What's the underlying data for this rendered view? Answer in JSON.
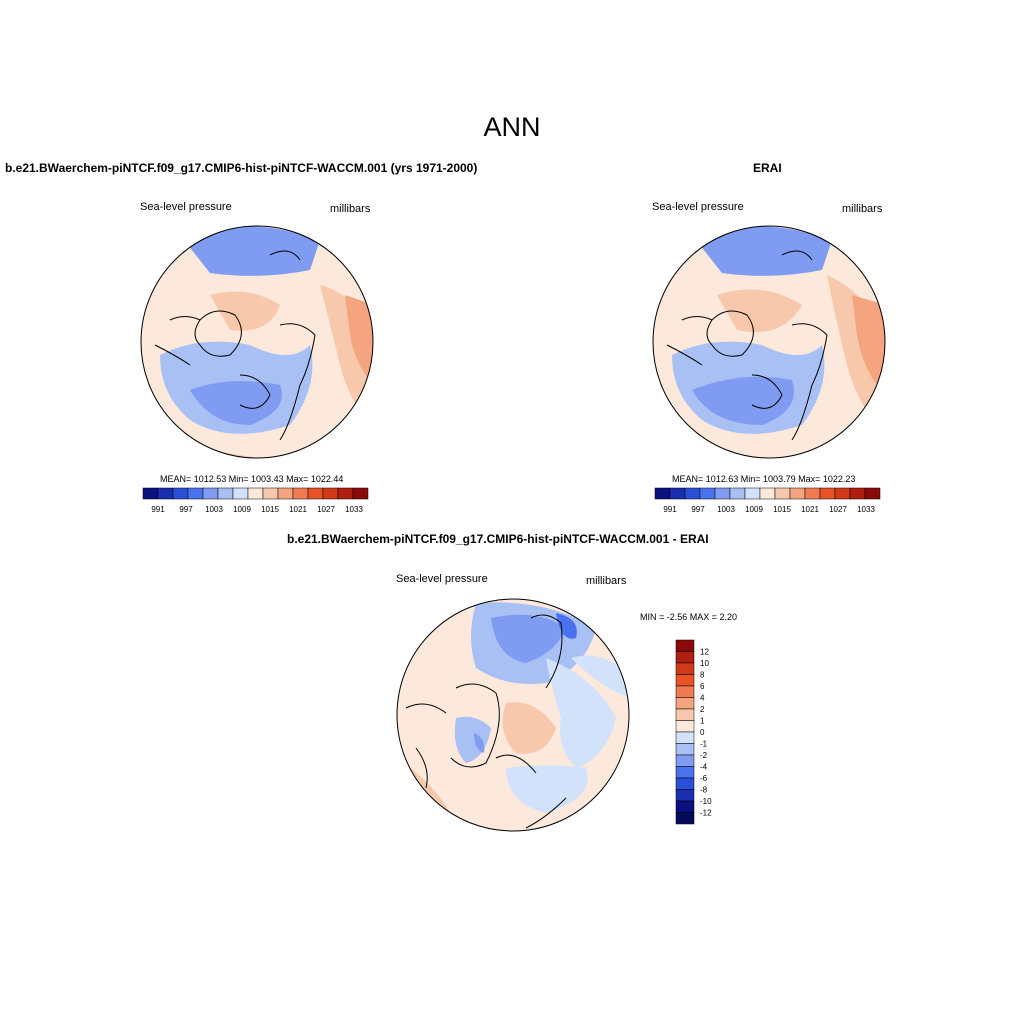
{
  "page": {
    "season": "ANN"
  },
  "panels": [
    {
      "title": "b.e21.BWaerchem-piNTCF.f09_g17.CMIP6-hist-piNTCF-WACCM.001 (yrs 1971-2000)",
      "left_label": "Sea-level pressure",
      "right_label": "millibars",
      "stats": "MEAN= 1012.53  Min= 1003.43  Max= 1022.44"
    },
    {
      "title": "ERAI",
      "left_label": "Sea-level pressure",
      "right_label": "millibars",
      "stats": "MEAN= 1012.63  Min= 1003.79  Max= 1022.23"
    },
    {
      "title": "b.e21.BWaerchem-piNTCF.f09_g17.CMIP6-hist-piNTCF-WACCM.001 - ERAI",
      "left_label": "Sea-level pressure",
      "right_label": "millibars",
      "stats": "MIN =  -2.56 MAX =   2.20"
    }
  ],
  "abs_colorbar": {
    "labels": [
      "991",
      "997",
      "1003",
      "1009",
      "1015",
      "1021",
      "1027",
      "1033"
    ],
    "colors": [
      "#0a1080",
      "#1a2fb0",
      "#2b50d8",
      "#4a72ee",
      "#7f9cf2",
      "#a9c0f5",
      "#d2e2fa",
      "#fde9dc",
      "#f8c8ac",
      "#f4a47f",
      "#f07a52",
      "#e85428",
      "#d03a18",
      "#b01f10",
      "#8a0a0a"
    ]
  },
  "diff_colorbar": {
    "labels": [
      "12",
      "10",
      "8",
      "6",
      "4",
      "2",
      "1",
      "0",
      "-1",
      "-2",
      "-4",
      "-6",
      "-8",
      "-10",
      "-12"
    ],
    "colors": [
      "#8a0a0a",
      "#b01f10",
      "#d03a18",
      "#e85428",
      "#f07a52",
      "#f4a47f",
      "#f8c8ac",
      "#fde9dc",
      "#d2e2fa",
      "#a9c0f5",
      "#7f9cf2",
      "#4a72ee",
      "#2b50d8",
      "#1a2fb0",
      "#0a1080",
      "#050a5a"
    ]
  },
  "colors": {
    "low": "#7f9cf2",
    "lowLight": "#a9c0f5",
    "neutralBlue": "#d2e2fa",
    "neutralRed": "#fde9dc",
    "highLight": "#f8c8ac",
    "high": "#f4a47f"
  }
}
